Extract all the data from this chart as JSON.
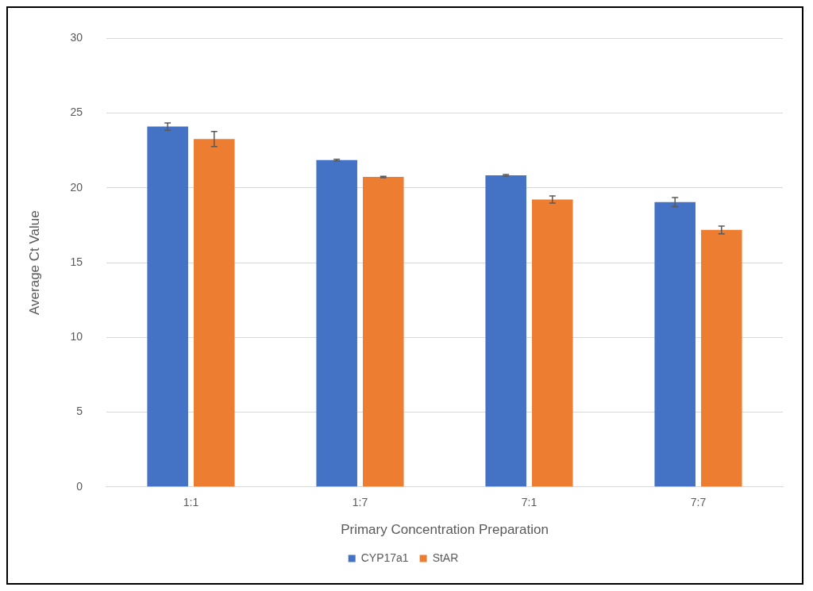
{
  "chart_data": {
    "type": "bar",
    "xlabel": "Primary Concentration Preparation",
    "ylabel": "Average Ct Value",
    "categories": [
      "1:1",
      "1:7",
      "7:1",
      "7:7"
    ],
    "series": [
      {
        "name": "CYP17a1",
        "color": "#4472c4",
        "values": [
          24.1,
          21.86,
          20.84,
          19.05
        ],
        "errors": [
          0.25,
          0.05,
          0.05,
          0.3
        ]
      },
      {
        "name": "StAR",
        "color": "#ed7d31",
        "values": [
          23.27,
          20.73,
          19.22,
          17.19
        ],
        "errors": [
          0.5,
          0.05,
          0.24,
          0.26
        ]
      }
    ],
    "ylim": [
      0,
      30
    ],
    "yticks": [
      0,
      5,
      10,
      15,
      20,
      25,
      30
    ],
    "grid": "y",
    "legend": "bottom"
  }
}
